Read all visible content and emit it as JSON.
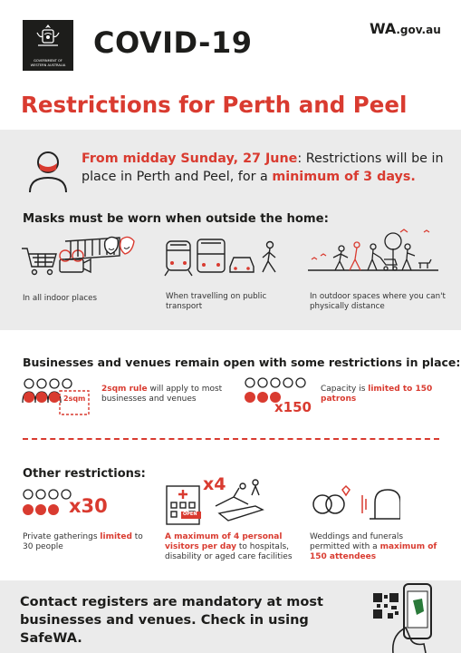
{
  "header": {
    "government_line1": "GOVERNMENT OF",
    "government_line2": "WESTERN AUSTRALIA",
    "title": "COVID-19",
    "wa_logo_main": "WA",
    "wa_logo_suffix": ".gov.au"
  },
  "subtitle": "Restrictions for Perth and Peel",
  "announcement": {
    "highlight_start": "From midday Sunday, 27 June",
    "middle": ": Restrictions will be in place in Perth and Peel, for a ",
    "highlight_end": "minimum of 3 days."
  },
  "masks": {
    "heading": "Masks must be worn when outside the home:",
    "items": [
      {
        "caption": "In all indoor places",
        "icon": "shopping-cart-theatre-icon"
      },
      {
        "caption": "When travelling on public transport",
        "icon": "transport-icon"
      },
      {
        "caption": "In outdoor spaces where you can't physically distance",
        "icon": "outdoor-people-icon"
      }
    ]
  },
  "businesses": {
    "heading": "Businesses and venues remain open with some restrictions in place:",
    "sqm_label": "2sqm",
    "rule_bold": "2sqm rule",
    "rule_rest": " will apply to most businesses and venues",
    "capacity_multiplier": "x150",
    "capacity_start": "Capacity is ",
    "capacity_bold": "limited to 150 patrons"
  },
  "other": {
    "heading": "Other restrictions:",
    "gatherings_multiplier": "x30",
    "gatherings_start": "Private gatherings ",
    "gatherings_bold": "limited",
    "gatherings_end": " to 30 people",
    "visitors_multiplier": "x4",
    "visitors_sign": "OPEN",
    "visitors_bold": "A maximum of 4 personal visitors per day",
    "visitors_rest": " to hospitals, disability or aged care facilities",
    "weddings_start": "Weddings and funerals permitted with a ",
    "weddings_bold": "maximum of 150 attendees"
  },
  "footer": {
    "text": "Contact registers are mandatory at most businesses and venues. Check in using SafeWA."
  },
  "colors": {
    "accent": "#d93b30",
    "band": "#ebebeb",
    "dark": "#1d1d1b"
  }
}
